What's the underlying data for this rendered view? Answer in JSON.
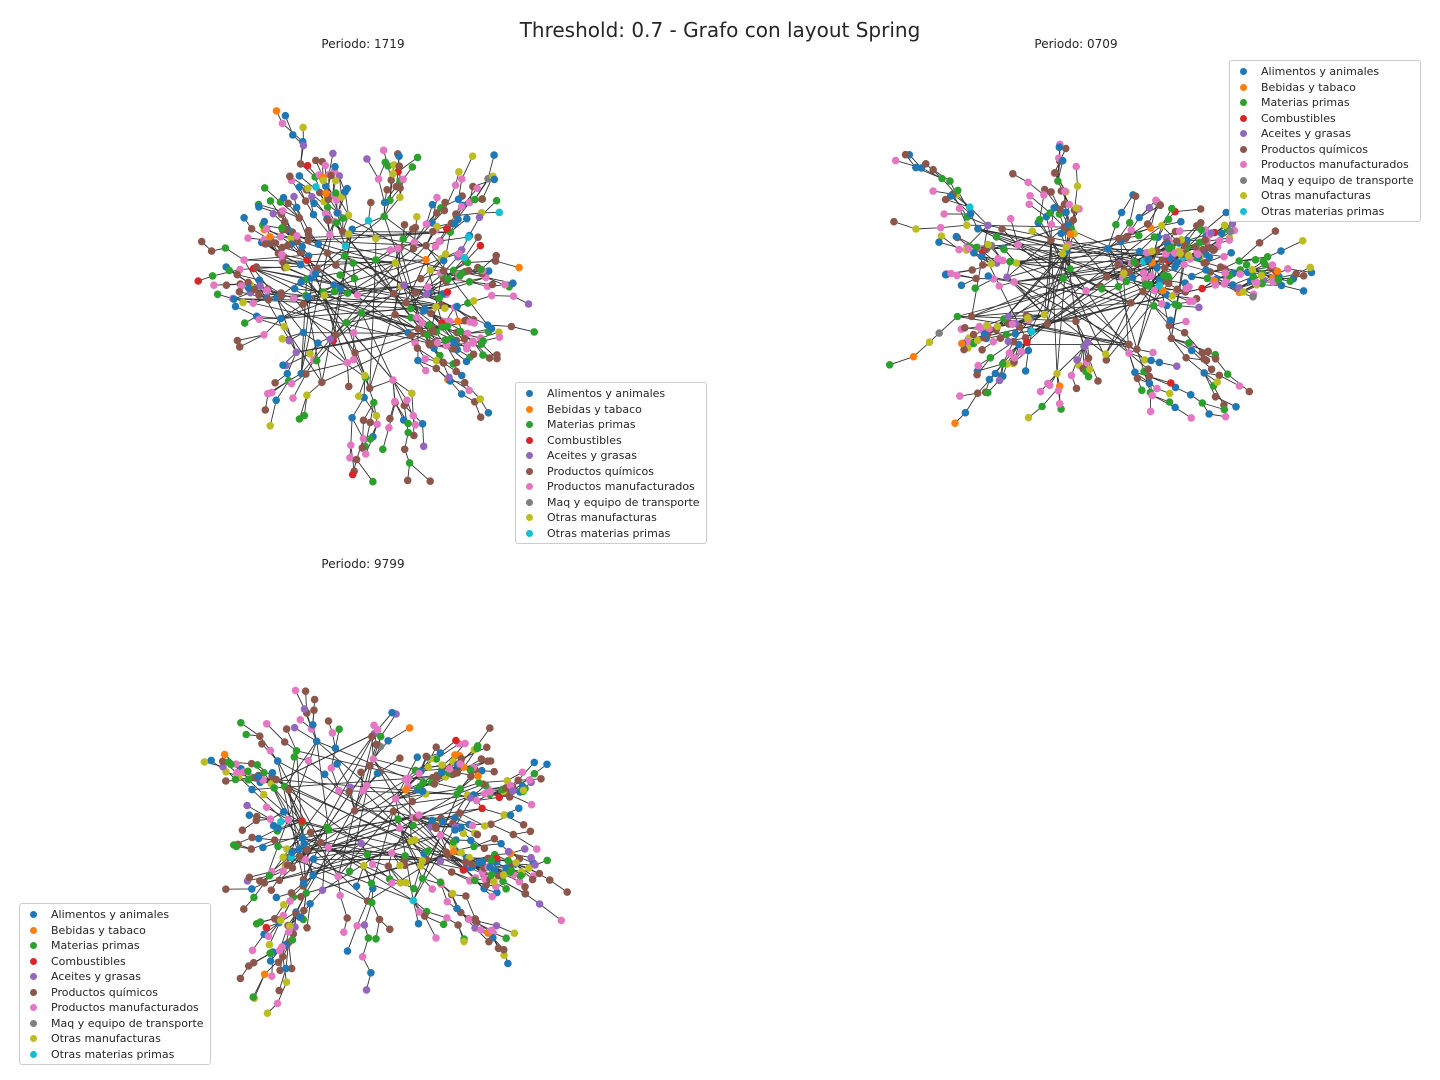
{
  "title": "Threshold: 0.7 - Grafo con layout Spring",
  "categories": [
    {
      "name": "Alimentos y animales",
      "color": "#1f77b4"
    },
    {
      "name": "Bebidas y tabaco",
      "color": "#ff7f0e"
    },
    {
      "name": "Materias primas",
      "color": "#2ca02c"
    },
    {
      "name": "Combustibles",
      "color": "#d62728"
    },
    {
      "name": "Aceites y grasas",
      "color": "#9467bd"
    },
    {
      "name": "Productos químicos",
      "color": "#8c564b"
    },
    {
      "name": "Productos manufacturados",
      "color": "#e377c2"
    },
    {
      "name": "Maq y equipo de transporte",
      "color": "#7f7f7f"
    },
    {
      "name": "Otras manufacturas",
      "color": "#bcbd22"
    },
    {
      "name": "Otras materias primas",
      "color": "#17becf"
    }
  ],
  "panels": [
    {
      "title": "Periodo: 1719",
      "legend_position": "lower-right"
    },
    {
      "title": "Periodo: 0709",
      "legend_position": "upper-right"
    },
    {
      "title": "Periodo: 9799",
      "legend_position": "lower-left"
    }
  ]
}
